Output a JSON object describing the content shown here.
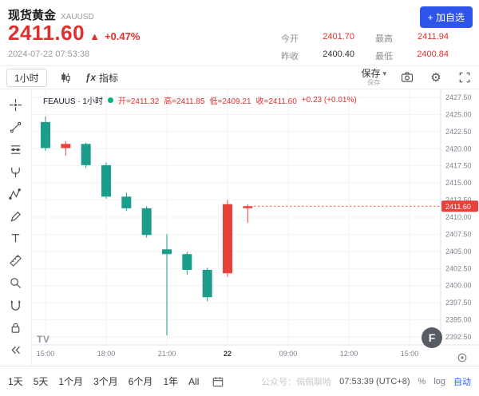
{
  "colors": {
    "accent_blue": "#2f54eb",
    "up_red": "#e8413c",
    "down_green": "#1a9e8b",
    "price_red": "#e0302e"
  },
  "header": {
    "name": "现货黄金",
    "code": "XAUUSD",
    "price": "2411.60",
    "arrow": "▲",
    "change_pct": "+0.47%",
    "timestamp": "2024-07-22 07:53:38",
    "add_watchlist": "+ 加自选",
    "stats": [
      {
        "label": "今开",
        "value": "2401.70"
      },
      {
        "label": "最高",
        "value": "2411.94"
      },
      {
        "label": "昨收",
        "value": "2400.40"
      },
      {
        "label": "最低",
        "value": "2400.84"
      }
    ]
  },
  "toolbar": {
    "timeframe": "1小时",
    "fx": "ƒx",
    "indicators": "指标",
    "save": "保存",
    "save_caret": "▾",
    "save_caption": "保存"
  },
  "chart": {
    "legend": {
      "title": "FEAUUS · 1小时",
      "open": "开=2411.32",
      "high": "高=2411.85",
      "low": "低=2409.21",
      "close": "收=2411.60",
      "change": "+0.23 (+0.01%)"
    },
    "watermark_letter": "F",
    "tv_logo": "TV"
  },
  "chart_data": {
    "type": "candlestick",
    "symbol": "XAUUSD",
    "interval": "1小时",
    "ylim": [
      2392.5,
      2427.5
    ],
    "y_step": 2.5,
    "x_ticks": [
      "15:00",
      "18:00",
      "21:00",
      "22",
      "09:00",
      "12:00",
      "15:00"
    ],
    "up_color": "#e8413c",
    "down_color": "#1a9e8b",
    "last_price": 2411.6,
    "last_price_label": "2411.60",
    "ohlc": [
      {
        "o": 2423.9,
        "h": 2424.7,
        "l": 2419.7,
        "c": 2420.1
      },
      {
        "o": 2420.1,
        "h": 2421.1,
        "l": 2419.0,
        "c": 2420.7
      },
      {
        "o": 2420.7,
        "h": 2420.9,
        "l": 2417.2,
        "c": 2417.6
      },
      {
        "o": 2417.6,
        "h": 2418.0,
        "l": 2412.7,
        "c": 2413.0
      },
      {
        "o": 2413.0,
        "h": 2413.6,
        "l": 2410.9,
        "c": 2411.3
      },
      {
        "o": 2411.3,
        "h": 2411.6,
        "l": 2407.0,
        "c": 2407.4
      },
      {
        "o": 2405.3,
        "h": 2407.5,
        "l": 2392.7,
        "c": 2404.6
      },
      {
        "o": 2404.6,
        "h": 2404.9,
        "l": 2401.6,
        "c": 2402.3
      },
      {
        "o": 2402.3,
        "h": 2402.6,
        "l": 2397.7,
        "c": 2398.3
      },
      {
        "o": 2401.8,
        "h": 2412.5,
        "l": 2401.3,
        "c": 2411.9
      },
      {
        "o": 2411.32,
        "h": 2411.85,
        "l": 2409.21,
        "c": 2411.6
      }
    ]
  },
  "bottom": {
    "ranges": [
      "1天",
      "5天",
      "1个月",
      "3个月",
      "6个月",
      "1年",
      "All"
    ],
    "watermark": "公众号：佩佩聊哈",
    "clock": "07:53:39 (UTC+8)",
    "percent": "%",
    "log": "log",
    "auto": "自动"
  }
}
